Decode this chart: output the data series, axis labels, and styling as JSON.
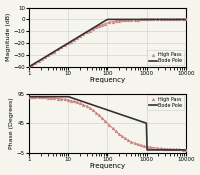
{
  "ylabel_mag": "Magnitude (dB)",
  "ylabel_phase": "Phase (Degrees)",
  "xlabel": "Frequency",
  "freq_min": 1,
  "freq_max": 10000,
  "pole_freq": 100,
  "ylim_mag": [
    -40,
    10
  ],
  "ylim_phase": [
    -5,
    95
  ],
  "yticks_mag": [
    -40,
    -30,
    -20,
    -10,
    0,
    10
  ],
  "yticks_phase": [
    -5,
    45,
    95
  ],
  "xticks": [
    1,
    10,
    100,
    1000,
    10000
  ],
  "highpass_color": "#d08080",
  "bode_color": "#333333",
  "background_color": "#f5f5ee",
  "grid_color": "#cccccc",
  "legend_highpass": "High Pass",
  "legend_bode": "Bode Pole",
  "marker": "^",
  "markersize": 2,
  "linewidth_hp": 0.7,
  "linewidth_bode": 1.2,
  "n_points": 200,
  "n_markers": 50
}
